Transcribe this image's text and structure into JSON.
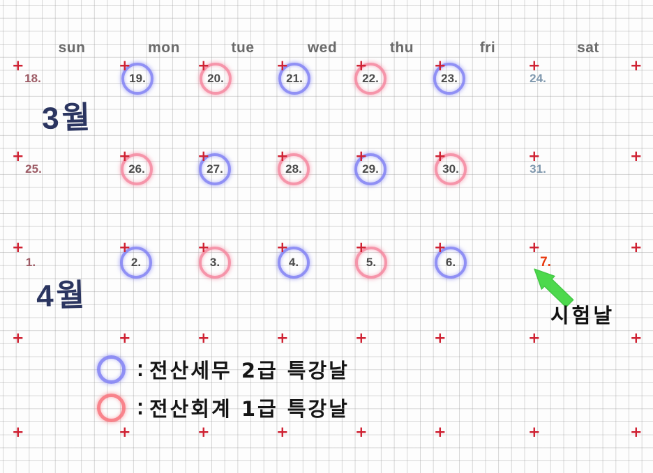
{
  "day_headers": [
    "sun",
    "mon",
    "tue",
    "wed",
    "thu",
    "fri",
    "sat"
  ],
  "months": [
    {
      "label": "3월"
    },
    {
      "label": "4월"
    }
  ],
  "weeks": [
    {
      "days": [
        {
          "date": "18.",
          "circle": "none",
          "color": "maroon"
        },
        {
          "date": "19.",
          "circle": "blue"
        },
        {
          "date": "20.",
          "circle": "pink"
        },
        {
          "date": "21.",
          "circle": "blue"
        },
        {
          "date": "22.",
          "circle": "pink"
        },
        {
          "date": "23.",
          "circle": "blue"
        },
        {
          "date": "24.",
          "circle": "none",
          "color": "steel"
        }
      ]
    },
    {
      "days": [
        {
          "date": "25.",
          "circle": "none",
          "color": "maroon"
        },
        {
          "date": "26.",
          "circle": "pink"
        },
        {
          "date": "27.",
          "circle": "blue"
        },
        {
          "date": "28.",
          "circle": "pink"
        },
        {
          "date": "29.",
          "circle": "blue"
        },
        {
          "date": "30.",
          "circle": "pink"
        },
        {
          "date": "31.",
          "circle": "none",
          "color": "steel"
        }
      ]
    },
    {
      "days": [
        {
          "date": "1.",
          "circle": "none",
          "color": "maroon"
        },
        {
          "date": "2.",
          "circle": "blue"
        },
        {
          "date": "3.",
          "circle": "pink"
        },
        {
          "date": "4.",
          "circle": "blue"
        },
        {
          "date": "5.",
          "circle": "pink"
        },
        {
          "date": "6.",
          "circle": "blue"
        },
        {
          "date": "7.",
          "circle": "none",
          "color": "red",
          "note": "exam day"
        }
      ]
    }
  ],
  "exam": {
    "day": "7.",
    "label": "시험날"
  },
  "legend": [
    {
      "circle": "blue",
      "colon": ":",
      "label": "전산세무 2급 특강날"
    },
    {
      "circle": "pink",
      "colon": ":",
      "label": "전산회계 1급 특강날"
    }
  ],
  "icons": {
    "plus_mark": "+",
    "arrow": "arrow-up-left"
  },
  "colors": {
    "blue_circle": "#7d7df3",
    "pink_circle": "#f4829b",
    "plus": "#cf2233",
    "navy": "#2b3560",
    "green_arrow": "#3fd63f",
    "maroon_date": "#9c5a64",
    "steel_date": "#7e97ad",
    "red_date": "#e8380d",
    "header_gray": "#6a6a6a",
    "date_dark": "#4a4a4a"
  }
}
